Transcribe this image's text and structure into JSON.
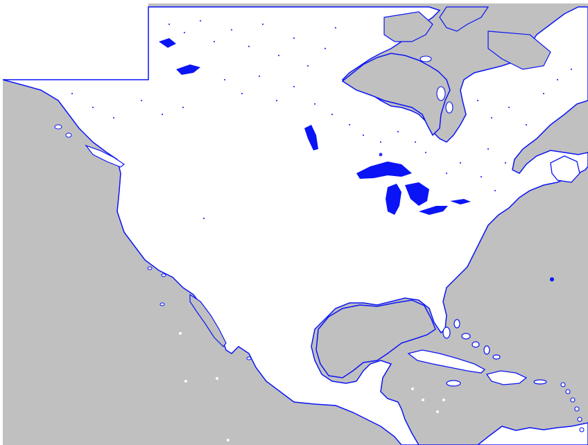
{
  "map": {
    "region": "north-america",
    "colors": {
      "ocean": "#c0c0c0",
      "land": "#ffffff",
      "water_outline": "#0a14f5",
      "inland_water_fill": "#0a14f5",
      "frame": "#ffffff"
    },
    "features": {
      "coastline": true,
      "inland_lakes": true,
      "great_lakes": true,
      "island_chains": true,
      "text_labels": false
    }
  }
}
